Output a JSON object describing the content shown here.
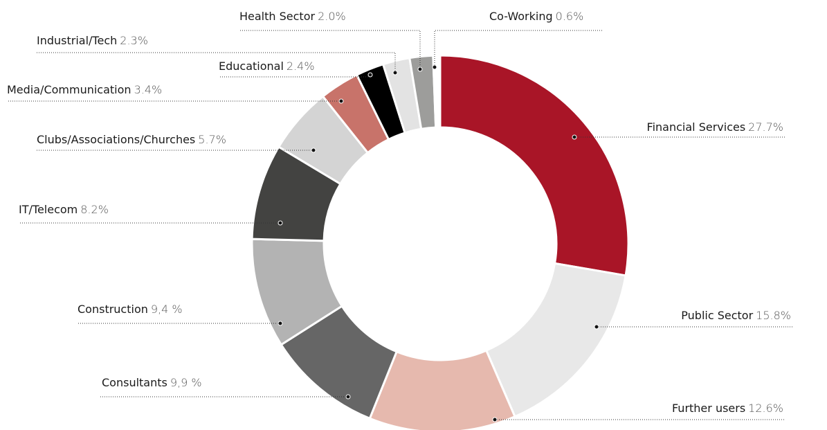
{
  "chart_data": {
    "type": "donut",
    "categories": [
      "Financial Services",
      "Public Sector",
      "Further users",
      "Consultants",
      "Construction",
      "IT/Telecom",
      "Clubs/Associations/Churches",
      "Media/Communication",
      "Educational",
      "Industrial/Tech",
      "Health Sector",
      "Co-Working"
    ],
    "values": [
      27.7,
      15.8,
      12.6,
      9.9,
      9.4,
      8.2,
      5.7,
      3.4,
      2.4,
      2.3,
      2.0,
      0.6
    ],
    "value_labels": [
      "27.7%",
      "15.8%",
      "12.6%",
      "9,9 %",
      "9,4 %",
      "8.2%",
      "5.7%",
      "3.4%",
      "2.4%",
      "2.3%",
      "2.0%",
      "0.6%"
    ],
    "colors": [
      "#a91527",
      "#e8e8e8",
      "#e6b9ae",
      "#666666",
      "#b3b3b3",
      "#434341",
      "#d4d4d4",
      "#c8736a",
      "#000000",
      "#e3e3e3",
      "#9d9d9b",
      "#ffffff"
    ]
  }
}
